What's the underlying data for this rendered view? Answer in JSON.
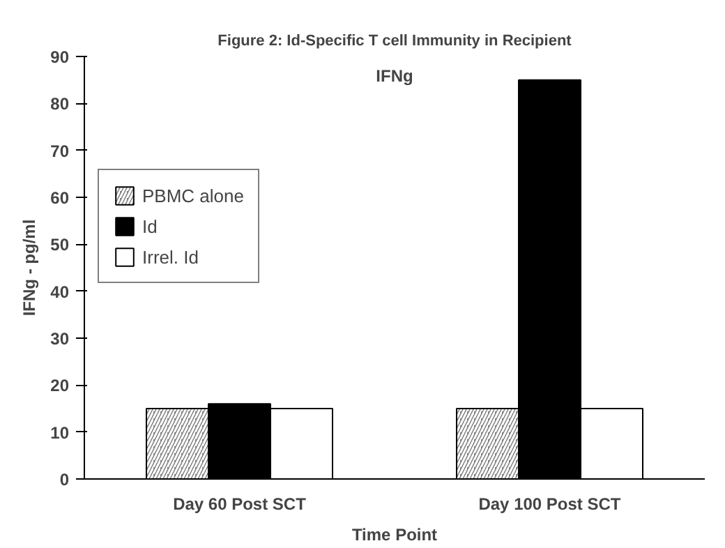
{
  "chart_data": {
    "type": "bar",
    "title": "Figure 2: Id-Specific T cell Immunity in Recipient",
    "xlabel": "Time Point",
    "ylabel": "IFNg - pg/ml",
    "categories": [
      "Day 60 Post SCT",
      "Day 100 Post SCT"
    ],
    "series": [
      {
        "name": "PBMC alone",
        "color": "#808080",
        "values": [
          15,
          15
        ]
      },
      {
        "name": "Id",
        "color": "#000000",
        "values": [
          16,
          85
        ]
      },
      {
        "name": "Irrel. Id",
        "color": "#ffffff",
        "values": [
          15,
          15
        ]
      }
    ],
    "annotations": [
      "IFNg"
    ],
    "ylim": [
      0,
      90
    ],
    "yticks": [
      0,
      10,
      20,
      30,
      40,
      50,
      60,
      70,
      80,
      90
    ],
    "grid": false,
    "legend": "left"
  }
}
